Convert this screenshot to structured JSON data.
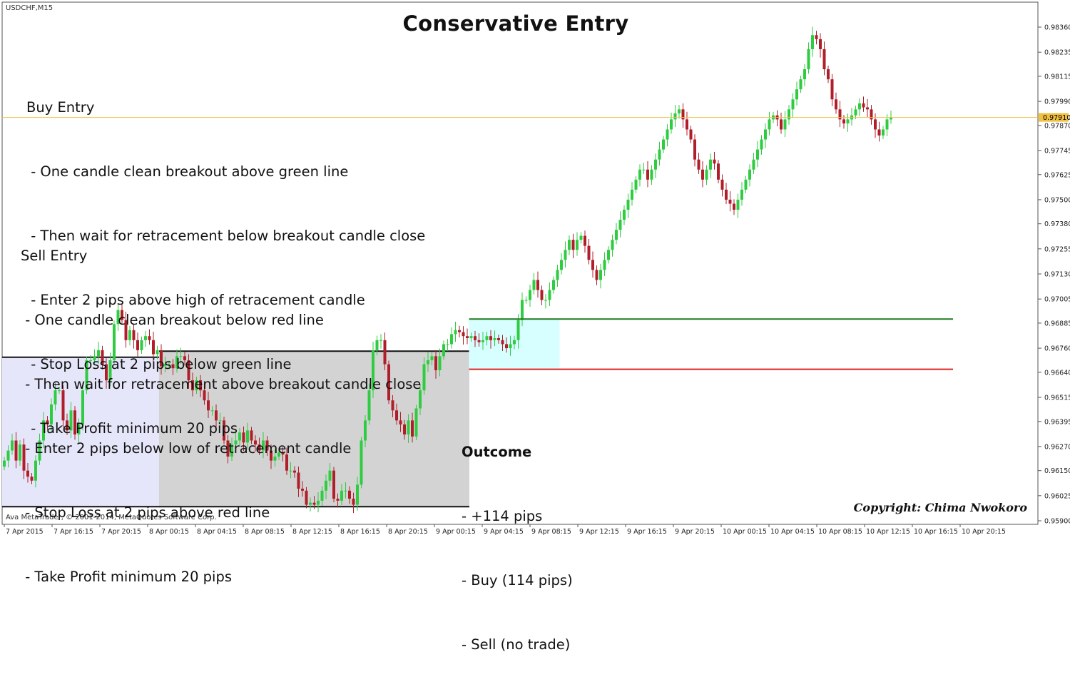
{
  "symbol_label": "USDCHF,M15",
  "vendor_label": "Ava MetaTrader, © 2001-2014, MetaQuotes Software Corp.",
  "title": "Conservative Entry",
  "buy_entry": {
    "heading": "Buy Entry",
    "lines": [
      " - One candle clean breakout above green line",
      " - Then wait for retracement below breakout candle close",
      " - Enter 2 pips above high of retracement candle",
      " - Stop Loss at 2 pips below green line",
      " - Take Profit minimum 20 pips"
    ]
  },
  "sell_entry": {
    "heading": "Sell Entry",
    "lines": [
      " - One candle clean breakout below red line",
      " - Then wait for retracement above breakout candle close",
      " - Enter 2 pips below low of retracement candle",
      " - Stop Loss at 2 pips above red line",
      " - Take Profit minimum 20 pips"
    ]
  },
  "outcome": {
    "heading": "Outcome",
    "lines": [
      "- +114 pips",
      "- Buy (114 pips)",
      "- Sell (no trade)"
    ]
  },
  "copyright": "Copyright: Chima Nwokoro",
  "colors": {
    "bull": "#2ecc40",
    "bear": "#b01e2a",
    "green_line": "#1f7a1f",
    "red_line": "#e02020",
    "price_line": "#f0c040",
    "range_zone_1": "#e6e6fa",
    "range_zone_2": "#d3d3d3",
    "breakout_zone": "#d8ffff"
  },
  "chart_data": {
    "type": "candlestick",
    "y_ticks": [
      "0.98360",
      "0.98235",
      "0.98115",
      "0.97990",
      "0.97870",
      "0.97745",
      "0.97625",
      "0.97500",
      "0.97380",
      "0.97255",
      "0.97130",
      "0.97005",
      "0.96885",
      "0.96760",
      "0.96640",
      "0.96515",
      "0.96395",
      "0.96270",
      "0.96150",
      "0.96025",
      "0.95900"
    ],
    "ylim": [
      0.959,
      0.9836
    ],
    "current_price": "0.97910",
    "x_ticks": [
      "7 Apr 2015",
      "7 Apr 16:15",
      "7 Apr 20:15",
      "8 Apr 00:15",
      "8 Apr 04:15",
      "8 Apr 08:15",
      "8 Apr 12:15",
      "8 Apr 16:15",
      "8 Apr 20:15",
      "9 Apr 00:15",
      "9 Apr 04:15",
      "9 Apr 08:15",
      "9 Apr 12:15",
      "9 Apr 16:15",
      "9 Apr 20:15",
      "10 Apr 00:15",
      "10 Apr 04:15",
      "10 Apr 08:15",
      "10 Apr 12:15",
      "10 Apr 16:15",
      "10 Apr 20:15"
    ],
    "levels": {
      "resistance_green": 0.96905,
      "support_red": 0.96655
    },
    "zones": [
      {
        "name": "range-1",
        "from_index": 0,
        "to_index": 39,
        "top": 0.96715,
        "bottom": 0.9597
      },
      {
        "name": "range-2",
        "from_index": 40,
        "to_index": 118,
        "top": 0.96745,
        "bottom": 0.9597
      },
      {
        "name": "breakout",
        "from_index": 119,
        "to_index": 141,
        "top": 0.96905,
        "bottom": 0.96655
      }
    ],
    "close_series": [
      0.962,
      0.9625,
      0.963,
      0.962,
      0.9628,
      0.9615,
      0.9612,
      0.961,
      0.962,
      0.963,
      0.964,
      0.9638,
      0.9648,
      0.9655,
      0.9655,
      0.964,
      0.9635,
      0.9645,
      0.9633,
      0.9638,
      0.9655,
      0.967,
      0.967,
      0.9672,
      0.9675,
      0.9668,
      0.966,
      0.967,
      0.9688,
      0.9695,
      0.969,
      0.968,
      0.9685,
      0.968,
      0.9675,
      0.968,
      0.9682,
      0.968,
      0.9673,
      0.9675,
      0.9667,
      0.9668,
      0.9668,
      0.9666,
      0.9672,
      0.9672,
      0.967,
      0.966,
      0.9655,
      0.966,
      0.9655,
      0.965,
      0.9645,
      0.9645,
      0.964,
      0.964,
      0.963,
      0.9622,
      0.9628,
      0.963,
      0.9634,
      0.9629,
      0.9635,
      0.963,
      0.9628,
      0.9625,
      0.963,
      0.9625,
      0.962,
      0.9622,
      0.9624,
      0.9623,
      0.9615,
      0.9615,
      0.9614,
      0.9606,
      0.9605,
      0.9598,
      0.9599,
      0.9598,
      0.96,
      0.9605,
      0.961,
      0.9615,
      0.9601,
      0.96,
      0.9605,
      0.9605,
      0.9601,
      0.9598,
      0.9608,
      0.963,
      0.964,
      0.9655,
      0.9675,
      0.968,
      0.968,
      0.9668,
      0.965,
      0.9645,
      0.964,
      0.9638,
      0.9633,
      0.964,
      0.9632,
      0.9646,
      0.9655,
      0.9668,
      0.967,
      0.9672,
      0.9665,
      0.9672,
      0.9678,
      0.9678,
      0.9683,
      0.9685,
      0.9684,
      0.9682,
      0.9681,
      0.9682,
      0.968,
      0.9679,
      0.968,
      0.9682,
      0.968,
      0.9681,
      0.968,
      0.9678,
      0.9676,
      0.9678,
      0.968,
      0.969,
      0.97,
      0.97,
      0.9705,
      0.971,
      0.9705,
      0.97,
      0.97,
      0.9705,
      0.971,
      0.9715,
      0.972,
      0.9725,
      0.973,
      0.9725,
      0.973,
      0.9732,
      0.9727,
      0.972,
      0.9715,
      0.971,
      0.9715,
      0.972,
      0.9725,
      0.973,
      0.9735,
      0.974,
      0.9745,
      0.975,
      0.9755,
      0.976,
      0.9765,
      0.9765,
      0.976,
      0.9765,
      0.977,
      0.9775,
      0.978,
      0.9785,
      0.979,
      0.9793,
      0.9795,
      0.979,
      0.9785,
      0.978,
      0.977,
      0.9765,
      0.976,
      0.9765,
      0.977,
      0.9768,
      0.976,
      0.9755,
      0.975,
      0.9748,
      0.9745,
      0.975,
      0.9755,
      0.976,
      0.9765,
      0.977,
      0.9775,
      0.978,
      0.9785,
      0.979,
      0.9792,
      0.979,
      0.9785,
      0.979,
      0.9795,
      0.98,
      0.9805,
      0.981,
      0.9815,
      0.9825,
      0.9832,
      0.983,
      0.9825,
      0.9815,
      0.981,
      0.98,
      0.9795,
      0.979,
      0.9788,
      0.979,
      0.9792,
      0.9795,
      0.9798,
      0.9796,
      0.9795,
      0.979,
      0.9785,
      0.9782,
      0.9785,
      0.979,
      0.9791
    ]
  }
}
